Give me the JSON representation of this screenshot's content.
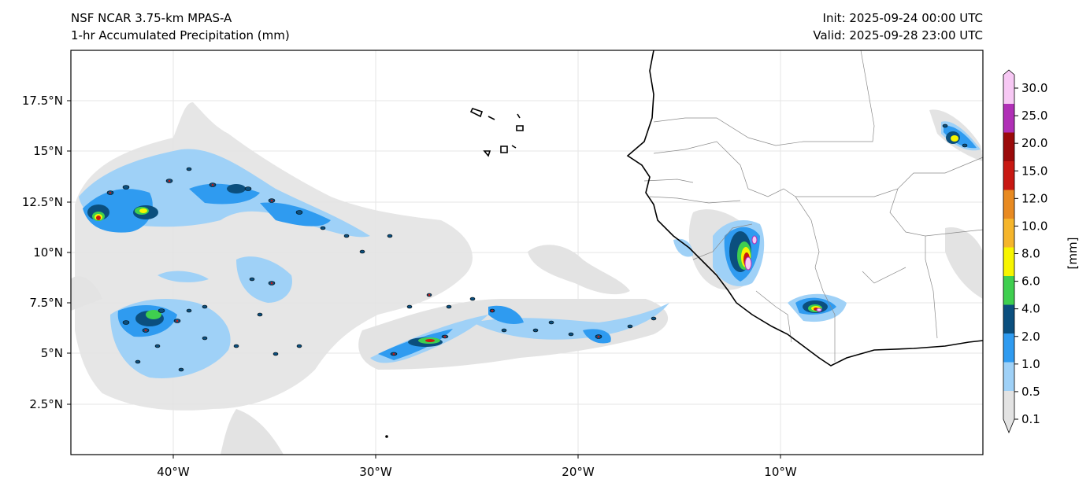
{
  "header": {
    "left_line1": "NSF NCAR 3.75-km MPAS-A",
    "left_line2": "1-hr Accumulated Precipitation (mm)",
    "right_line1": "Init: 2025-09-24 00:00 UTC",
    "right_line2": "Valid: 2025-09-28 23:00 UTC"
  },
  "map": {
    "lon_ticks": [
      "40°W",
      "30°W",
      "20°W",
      "10°W"
    ],
    "lat_ticks": [
      "17.5°N",
      "15°N",
      "12.5°N",
      "10°N",
      "7.5°N",
      "5°N",
      "2.5°N"
    ]
  },
  "colorbar": {
    "label": "[mm]",
    "levels": [
      "0.1",
      "0.5",
      "1.0",
      "2.0",
      "4.0",
      "6.0",
      "8.0",
      "10.0",
      "12.0",
      "15.0",
      "20.0",
      "25.0",
      "30.0"
    ],
    "colors": [
      "#e3e3e3",
      "#9fd1f7",
      "#2f9bf0",
      "#0b4f7e",
      "#3fcf4f",
      "#f7f500",
      "#f5b52b",
      "#e88a21",
      "#c81812",
      "#9b0a0a",
      "#b02fb6",
      "#f7c8f4"
    ]
  },
  "colors": {
    "land_border": "#000000",
    "country_border": "#8a8a8a",
    "grid": "#e4e4e4"
  }
}
